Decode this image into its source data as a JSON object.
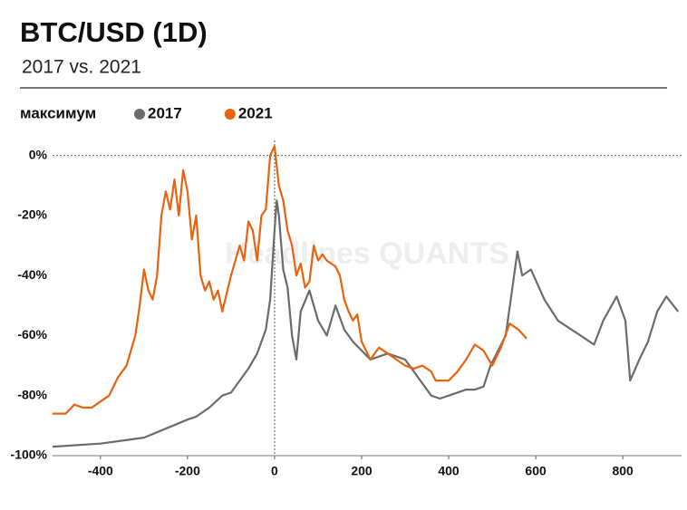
{
  "chart_data": {
    "type": "line",
    "title": "BTC/USD (1D)",
    "subtitle": "2017 vs. 2021",
    "legend_title": "максимум",
    "watermark": "Headlines QUANTS",
    "xlim": [
      -510,
      935
    ],
    "ylim": [
      -100,
      5
    ],
    "xticks": [
      -400,
      -200,
      0,
      200,
      400,
      600,
      800
    ],
    "yticks": [
      {
        "value": -100,
        "label": "-100%"
      },
      {
        "value": -80,
        "label": "-80%"
      },
      {
        "value": -60,
        "label": "-60%"
      },
      {
        "value": -40,
        "label": "-40%"
      },
      {
        "value": -20,
        "label": "-20%"
      },
      {
        "value": 0,
        "label": "0%"
      }
    ],
    "hline": 0,
    "vline": 0,
    "series": [
      {
        "name": "2017",
        "color": "#6b6b6b",
        "x": [
          -510,
          -400,
          -300,
          -250,
          -200,
          -180,
          -150,
          -120,
          -100,
          -80,
          -60,
          -40,
          -20,
          -10,
          0,
          5,
          10,
          20,
          30,
          40,
          50,
          60,
          80,
          100,
          120,
          140,
          160,
          180,
          200,
          220,
          240,
          260,
          280,
          300,
          320,
          340,
          360,
          380,
          400,
          420,
          440,
          460,
          480,
          496,
          531,
          558,
          569,
          589,
          620,
          651,
          682,
          703,
          734,
          755,
          786,
          806,
          817,
          838,
          858,
          879,
          900,
          927
        ],
        "values": [
          -97,
          -96,
          -94,
          -91,
          -88,
          -87,
          -84,
          -80,
          -79,
          -75,
          -71,
          -66,
          -58,
          -48,
          -25,
          -15,
          -20,
          -38,
          -44,
          -60,
          -68,
          -52,
          -45,
          -55,
          -60,
          -50,
          -58,
          -62,
          -65,
          -68,
          -67,
          -66,
          -67,
          -68,
          -72,
          -76,
          -80,
          -81,
          -80,
          -79,
          -78,
          -78,
          -77,
          -70,
          -60,
          -32,
          -40,
          -38,
          -48,
          -55,
          -58,
          -60,
          -63,
          -55,
          -47,
          -55,
          -75,
          -68,
          -62,
          -52,
          -47,
          -52
        ]
      },
      {
        "name": "2021",
        "color": "#e8620f",
        "x": [
          -510,
          -480,
          -460,
          -440,
          -420,
          -400,
          -380,
          -360,
          -340,
          -320,
          -310,
          -300,
          -290,
          -280,
          -270,
          -260,
          -250,
          -240,
          -230,
          -220,
          -210,
          -200,
          -190,
          -180,
          -170,
          -160,
          -150,
          -140,
          -130,
          -120,
          -110,
          -100,
          -80,
          -70,
          -60,
          -50,
          -40,
          -30,
          -20,
          -10,
          0,
          10,
          20,
          30,
          40,
          50,
          60,
          70,
          80,
          90,
          100,
          110,
          120,
          140,
          150,
          160,
          170,
          180,
          190,
          200,
          220,
          240,
          260,
          280,
          300,
          320,
          340,
          360,
          370,
          400,
          420,
          440,
          460,
          480,
          500,
          520,
          540,
          560,
          579
        ],
        "values": [
          -86,
          -86,
          -83,
          -84,
          -84,
          -82,
          -80,
          -74,
          -70,
          -60,
          -50,
          -38,
          -45,
          -48,
          -40,
          -20,
          -12,
          -18,
          -8,
          -20,
          -5,
          -12,
          -28,
          -20,
          -40,
          -45,
          -42,
          -48,
          -45,
          -52,
          -46,
          -40,
          -30,
          -35,
          -22,
          -25,
          -35,
          -20,
          -18,
          0,
          3,
          -10,
          -15,
          -25,
          -30,
          -40,
          -36,
          -44,
          -42,
          -30,
          -35,
          -33,
          -35,
          -37,
          -40,
          -48,
          -52,
          -55,
          -53,
          -62,
          -68,
          -64,
          -66,
          -68,
          -70,
          -71,
          -70,
          -72,
          -75,
          -75,
          -72,
          -68,
          -63,
          -65,
          -70,
          -64,
          -56,
          -58,
          -61
        ]
      }
    ]
  }
}
